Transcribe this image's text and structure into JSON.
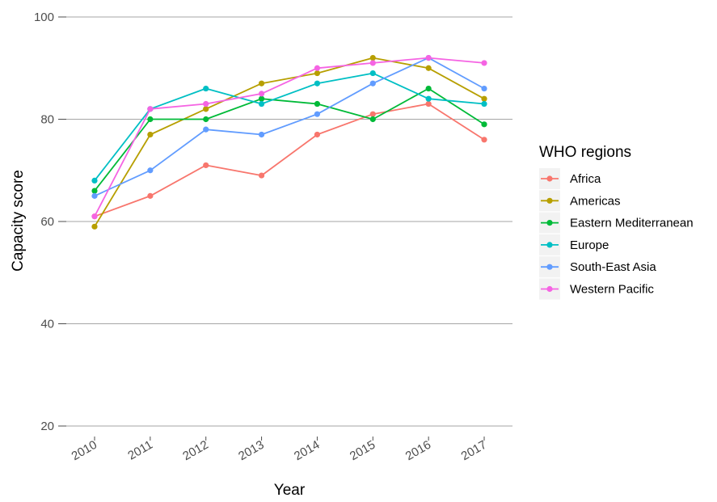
{
  "chart_data": {
    "type": "line",
    "title": "",
    "xlabel": "Year",
    "ylabel": "Capacity score",
    "ylim": [
      20,
      100
    ],
    "yticks": [
      20,
      40,
      60,
      80,
      100
    ],
    "grid": "horizontal major gridlines",
    "legend_title": "WHO regions",
    "legend_position": "right",
    "categories": [
      "2010",
      "2011",
      "2012",
      "2013",
      "2014",
      "2015",
      "2016",
      "2017"
    ],
    "series": [
      {
        "name": "Africa",
        "color": "#F8766D",
        "values": [
          61,
          65,
          71,
          69,
          77,
          81,
          83,
          76
        ]
      },
      {
        "name": "Americas",
        "color": "#B79F00",
        "values": [
          59,
          77,
          82,
          87,
          89,
          92,
          90,
          84
        ]
      },
      {
        "name": "Eastern Mediterranean",
        "color": "#00BA38",
        "values": [
          66,
          80,
          80,
          84,
          83,
          80,
          86,
          79
        ]
      },
      {
        "name": "Europe",
        "color": "#00BFC4",
        "values": [
          68,
          82,
          86,
          83,
          87,
          89,
          84,
          83
        ]
      },
      {
        "name": "South-East Asia",
        "color": "#619CFF",
        "values": [
          65,
          70,
          78,
          77,
          81,
          87,
          92,
          86
        ]
      },
      {
        "name": "Western Pacific",
        "color": "#F564E3",
        "values": [
          61,
          82,
          83,
          85,
          90,
          91,
          92,
          91
        ]
      }
    ]
  }
}
